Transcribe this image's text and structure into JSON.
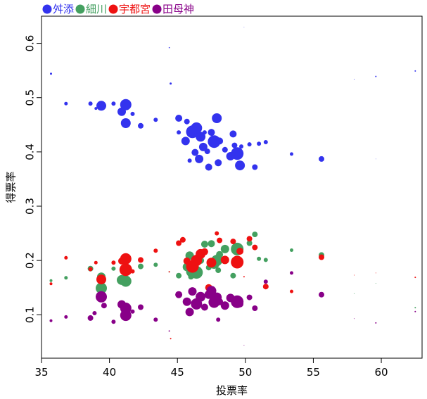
{
  "chart_data": {
    "type": "scatter",
    "xlabel": "投票率",
    "ylabel": "得票率",
    "xlim": [
      35,
      63
    ],
    "ylim": [
      0.02,
      0.65
    ],
    "x_ticks": [
      35,
      40,
      45,
      50,
      55,
      60
    ],
    "y_ticks": [
      0.1,
      0.2,
      0.3,
      0.4,
      0.5,
      0.6
    ],
    "legend_position": "top-left",
    "series": [
      {
        "name": "舛添",
        "color": "#3333ee",
        "points": [
          [
            35.7,
            0.544,
            1.5
          ],
          [
            36.8,
            0.489,
            2.5
          ],
          [
            38.6,
            0.489,
            3
          ],
          [
            39.0,
            0.48,
            2
          ],
          [
            39.4,
            0.485,
            7
          ],
          [
            40.3,
            0.489,
            3
          ],
          [
            40.9,
            0.474,
            6
          ],
          [
            41.2,
            0.487,
            8
          ],
          [
            41.2,
            0.453,
            7
          ],
          [
            41.7,
            0.47,
            3
          ],
          [
            42.3,
            0.448,
            4
          ],
          [
            43.4,
            0.459,
            3
          ],
          [
            44.4,
            0.592,
            0.8
          ],
          [
            44.5,
            0.526,
            1.5
          ],
          [
            45.1,
            0.462,
            5
          ],
          [
            45.1,
            0.436,
            3
          ],
          [
            45.7,
            0.456,
            4
          ],
          [
            45.6,
            0.42,
            6
          ],
          [
            46.1,
            0.437,
            9
          ],
          [
            46.4,
            0.444,
            8
          ],
          [
            46.7,
            0.428,
            7
          ],
          [
            47.0,
            0.436,
            3
          ],
          [
            46.9,
            0.409,
            6
          ],
          [
            47.5,
            0.436,
            5
          ],
          [
            47.7,
            0.419,
            9
          ],
          [
            47.9,
            0.462,
            7
          ],
          [
            48.1,
            0.42,
            5
          ],
          [
            48.5,
            0.404,
            4
          ],
          [
            49.1,
            0.433,
            5
          ],
          [
            49.4,
            0.397,
            9
          ],
          [
            49.2,
            0.412,
            4
          ],
          [
            49.7,
            0.41,
            3
          ],
          [
            50.3,
            0.414,
            3
          ],
          [
            51.0,
            0.415,
            3
          ],
          [
            51.5,
            0.418,
            3
          ],
          [
            50.7,
            0.372,
            4
          ],
          [
            49.6,
            0.375,
            7
          ],
          [
            48.0,
            0.38,
            5
          ],
          [
            47.3,
            0.372,
            5
          ],
          [
            46.3,
            0.399,
            5
          ],
          [
            45.9,
            0.384,
            3
          ],
          [
            46.6,
            0.387,
            6
          ],
          [
            53.4,
            0.396,
            2.5
          ],
          [
            55.6,
            0.387,
            4
          ],
          [
            58.0,
            0.534,
            0.5
          ],
          [
            59.6,
            0.539,
            1
          ],
          [
            62.5,
            0.549,
            1
          ],
          [
            49.9,
            0.63,
            0.4
          ],
          [
            59.6,
            0.387,
            0.4
          ],
          [
            48.9,
            0.392,
            6
          ],
          [
            47.2,
            0.401,
            4
          ]
        ]
      },
      {
        "name": "細川",
        "color": "#44a060",
        "points": [
          [
            35.7,
            0.163,
            2
          ],
          [
            36.8,
            0.168,
            2.5
          ],
          [
            38.6,
            0.185,
            4
          ],
          [
            39.4,
            0.17,
            6
          ],
          [
            39.4,
            0.149,
            8
          ],
          [
            40.3,
            0.185,
            3
          ],
          [
            40.9,
            0.164,
            7
          ],
          [
            41.2,
            0.162,
            8
          ],
          [
            41.2,
            0.189,
            4
          ],
          [
            42.3,
            0.189,
            4
          ],
          [
            43.4,
            0.192,
            3
          ],
          [
            44.4,
            0.179,
            1
          ],
          [
            45.1,
            0.172,
            4
          ],
          [
            45.7,
            0.188,
            6
          ],
          [
            45.9,
            0.209,
            6
          ],
          [
            46.1,
            0.18,
            9
          ],
          [
            46.4,
            0.178,
            9
          ],
          [
            46.7,
            0.2,
            5
          ],
          [
            47.0,
            0.23,
            5
          ],
          [
            47.3,
            0.187,
            4
          ],
          [
            47.5,
            0.231,
            5
          ],
          [
            47.7,
            0.195,
            8
          ],
          [
            47.9,
            0.2,
            8
          ],
          [
            48.1,
            0.211,
            5
          ],
          [
            48.5,
            0.221,
            6
          ],
          [
            49.1,
            0.172,
            4
          ],
          [
            49.4,
            0.221,
            9
          ],
          [
            49.6,
            0.198,
            5
          ],
          [
            50.3,
            0.232,
            4
          ],
          [
            50.7,
            0.248,
            4
          ],
          [
            51.0,
            0.203,
            3
          ],
          [
            51.5,
            0.201,
            3
          ],
          [
            53.4,
            0.219,
            2.5
          ],
          [
            55.6,
            0.21,
            4
          ],
          [
            58.0,
            0.139,
            0.5
          ],
          [
            59.6,
            0.158,
            0.5
          ],
          [
            62.5,
            0.113,
            1
          ],
          [
            48.0,
            0.182,
            4
          ],
          [
            46.0,
            0.17,
            4
          ]
        ]
      },
      {
        "name": "宇都宮",
        "color": "#ee1111",
        "points": [
          [
            35.7,
            0.157,
            2
          ],
          [
            36.8,
            0.205,
            2.5
          ],
          [
            38.6,
            0.184,
            3
          ],
          [
            39.0,
            0.196,
            2.5
          ],
          [
            39.4,
            0.165,
            7
          ],
          [
            40.3,
            0.196,
            3
          ],
          [
            40.9,
            0.199,
            5
          ],
          [
            41.2,
            0.183,
            9
          ],
          [
            41.2,
            0.203,
            8
          ],
          [
            41.7,
            0.18,
            3
          ],
          [
            42.3,
            0.201,
            4
          ],
          [
            43.4,
            0.218,
            3
          ],
          [
            44.4,
            0.179,
            1
          ],
          [
            44.5,
            0.056,
            1
          ],
          [
            45.1,
            0.232,
            4
          ],
          [
            45.4,
            0.238,
            4
          ],
          [
            45.7,
            0.199,
            5
          ],
          [
            46.1,
            0.189,
            9
          ],
          [
            46.4,
            0.2,
            8
          ],
          [
            46.7,
            0.212,
            7
          ],
          [
            47.0,
            0.216,
            5
          ],
          [
            47.3,
            0.15,
            5
          ],
          [
            47.5,
            0.196,
            7
          ],
          [
            47.9,
            0.25,
            3
          ],
          [
            48.1,
            0.237,
            4
          ],
          [
            48.5,
            0.201,
            6
          ],
          [
            49.1,
            0.235,
            4
          ],
          [
            49.4,
            0.197,
            9
          ],
          [
            49.6,
            0.217,
            5
          ],
          [
            50.3,
            0.24,
            4
          ],
          [
            50.7,
            0.224,
            4
          ],
          [
            51.5,
            0.152,
            4
          ],
          [
            53.4,
            0.143,
            2.5
          ],
          [
            55.6,
            0.206,
            4
          ],
          [
            58.0,
            0.173,
            0.5
          ],
          [
            59.6,
            0.177,
            0.5
          ],
          [
            62.5,
            0.169,
            1
          ],
          [
            49.9,
            0.17,
            1
          ]
        ]
      },
      {
        "name": "田母神",
        "color": "#880088",
        "points": [
          [
            35.7,
            0.089,
            2
          ],
          [
            36.8,
            0.096,
            2.5
          ],
          [
            38.6,
            0.094,
            4
          ],
          [
            38.9,
            0.103,
            3
          ],
          [
            39.4,
            0.133,
            8
          ],
          [
            39.6,
            0.117,
            4
          ],
          [
            40.3,
            0.087,
            3
          ],
          [
            40.9,
            0.119,
            6
          ],
          [
            41.2,
            0.112,
            8
          ],
          [
            41.2,
            0.099,
            8
          ],
          [
            41.7,
            0.106,
            3
          ],
          [
            42.3,
            0.114,
            4
          ],
          [
            43.4,
            0.091,
            3
          ],
          [
            44.4,
            0.07,
            1
          ],
          [
            45.1,
            0.137,
            5
          ],
          [
            45.7,
            0.124,
            6
          ],
          [
            45.9,
            0.105,
            6
          ],
          [
            46.1,
            0.143,
            6
          ],
          [
            46.4,
            0.12,
            8
          ],
          [
            46.7,
            0.133,
            7
          ],
          [
            47.0,
            0.114,
            5
          ],
          [
            47.3,
            0.137,
            6
          ],
          [
            47.5,
            0.144,
            7
          ],
          [
            47.7,
            0.123,
            8
          ],
          [
            47.9,
            0.132,
            7
          ],
          [
            48.1,
            0.124,
            5
          ],
          [
            48.5,
            0.117,
            6
          ],
          [
            48.9,
            0.131,
            6
          ],
          [
            49.4,
            0.124,
            9
          ],
          [
            49.6,
            0.12,
            5
          ],
          [
            50.3,
            0.132,
            4
          ],
          [
            50.7,
            0.112,
            4
          ],
          [
            51.5,
            0.161,
            3
          ],
          [
            53.4,
            0.177,
            2.5
          ],
          [
            55.6,
            0.137,
            4
          ],
          [
            58.0,
            0.093,
            0.5
          ],
          [
            59.6,
            0.085,
            1
          ],
          [
            62.5,
            0.106,
            1
          ],
          [
            48.0,
            0.091,
            3
          ],
          [
            49.9,
            0.044,
            0.5
          ]
        ]
      }
    ]
  }
}
